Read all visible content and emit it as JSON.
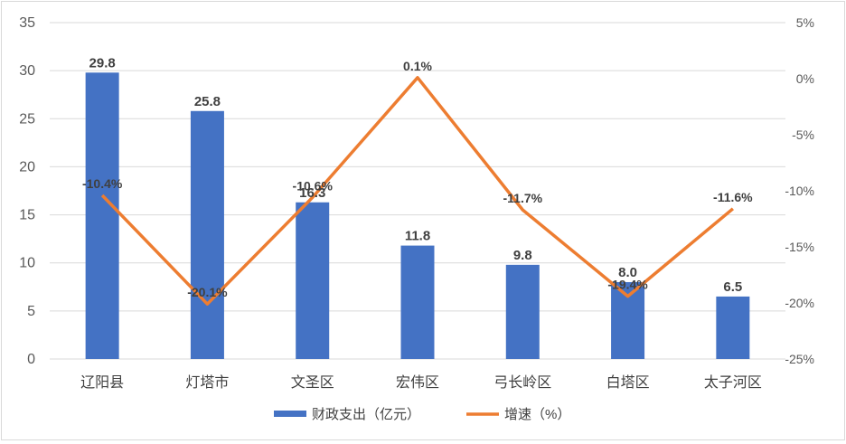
{
  "chart_data": {
    "type": "bar+line",
    "categories": [
      "辽阳县",
      "灯塔市",
      "文圣区",
      "宏伟区",
      "弓长岭区",
      "白塔区",
      "太子河区"
    ],
    "series": [
      {
        "name": "财政支出（亿元）",
        "type": "bar",
        "axis": "left",
        "color": "#4472C4",
        "values": [
          29.8,
          25.8,
          16.3,
          11.8,
          9.8,
          8.0,
          6.5
        ],
        "labels": [
          "29.8",
          "25.8",
          "16.3",
          "11.8",
          "9.8",
          "8.0",
          "6.5"
        ]
      },
      {
        "name": "增速（%）",
        "type": "line",
        "axis": "right",
        "color": "#ED7D31",
        "values": [
          -10.4,
          -20.1,
          -10.6,
          0.1,
          -11.7,
          -19.4,
          -11.6
        ],
        "labels": [
          "-10.4%",
          "-20.1%",
          "-10.6%",
          "0.1%",
          "-11.7%",
          "-19.4%",
          "-11.6%"
        ]
      }
    ],
    "left_axis": {
      "min": 0,
      "max": 35,
      "step": 5,
      "ticks": [
        "0",
        "5",
        "10",
        "15",
        "20",
        "25",
        "30",
        "35"
      ]
    },
    "right_axis": {
      "min": -25,
      "max": 5,
      "step": 5,
      "ticks": [
        "-25%",
        "-20%",
        "-15%",
        "-10%",
        "-5%",
        "0%",
        "5%"
      ]
    },
    "grid": true,
    "legend": "bottom"
  }
}
